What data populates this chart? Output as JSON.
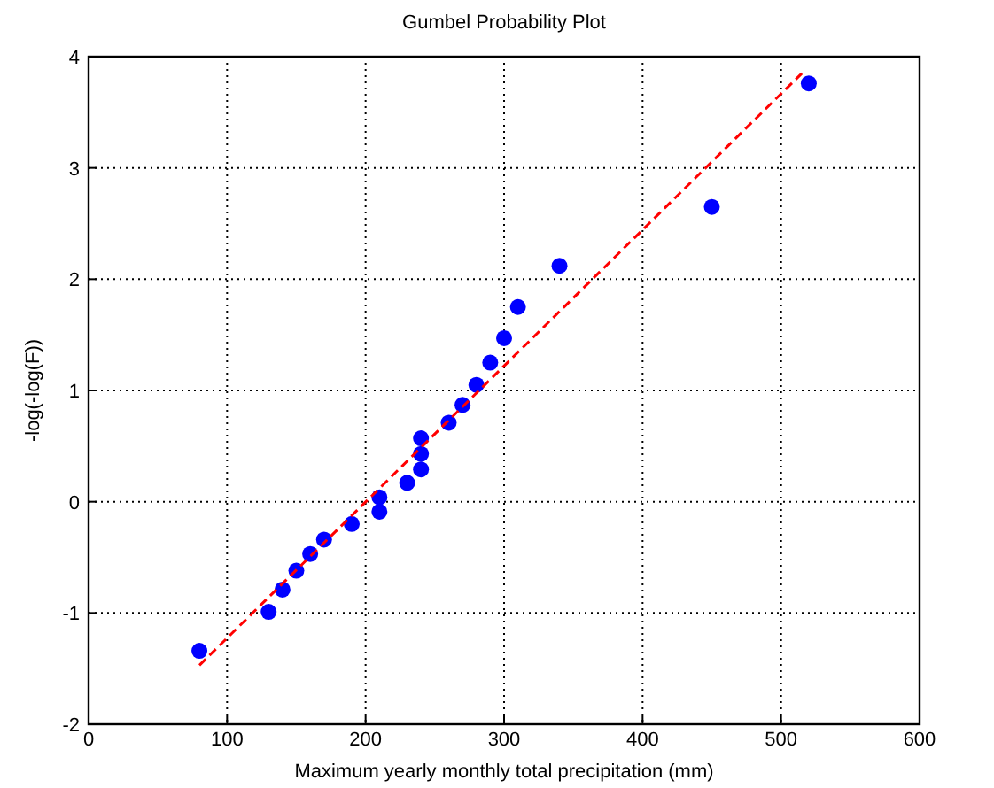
{
  "chart_data": {
    "type": "scatter",
    "title": "Gumbel Probability Plot",
    "xlabel": "Maximum yearly monthly total precipitation (mm)",
    "ylabel": "-log(-log(F))",
    "xlim": [
      0,
      600
    ],
    "xticks": [
      0,
      100,
      200,
      300,
      400,
      500,
      600
    ],
    "ylim": [
      -2,
      4
    ],
    "yticks": [
      -2,
      -1,
      0,
      1,
      2,
      3,
      4
    ],
    "grid": true,
    "series": [
      {
        "color": "#0000ff",
        "marker": "circle",
        "x": [
          80,
          130,
          140,
          150,
          160,
          170,
          190,
          210,
          210,
          230,
          240,
          240,
          240,
          260,
          270,
          280,
          290,
          300,
          310,
          340,
          450,
          520
        ],
        "values": [
          -1.34,
          -0.99,
          -0.79,
          -0.62,
          -0.47,
          -0.34,
          -0.2,
          -0.09,
          0.04,
          0.17,
          0.29,
          0.43,
          0.57,
          0.71,
          0.87,
          1.05,
          1.25,
          1.47,
          1.75,
          2.12,
          2.65,
          3.76
        ]
      },
      {
        "type": "line",
        "color": "#ff0000",
        "line_style": "dashed",
        "marker": "none",
        "x": [
          80,
          515
        ],
        "values": [
          -1.47,
          3.85
        ]
      }
    ]
  }
}
